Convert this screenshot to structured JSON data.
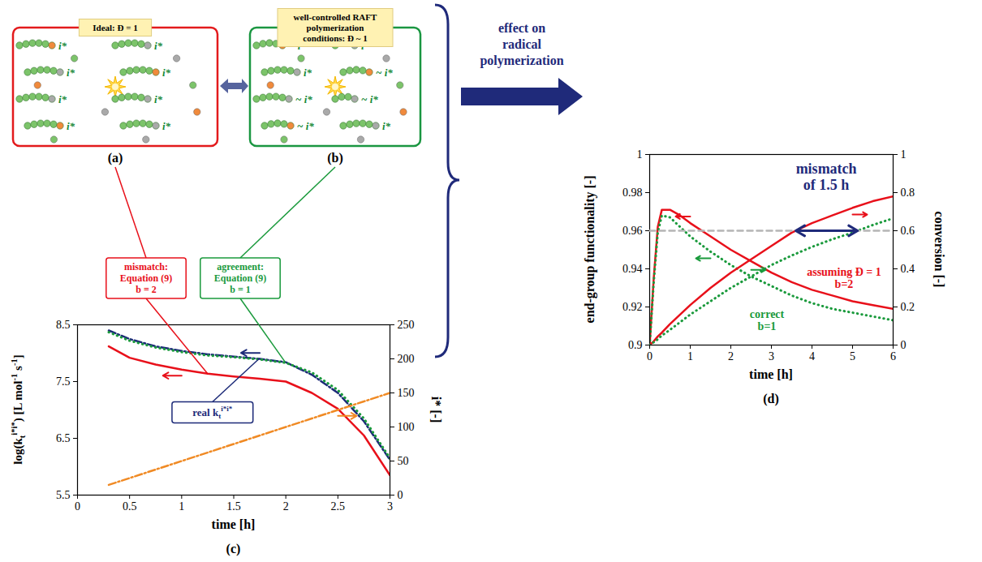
{
  "panels": [
    {
      "panel_label": "(a)",
      "tag": "Ideal: Đ = 1",
      "chain_labels": [
        "i*",
        "i*",
        "i*",
        "i*",
        "i*",
        "i*",
        "i*",
        "i*"
      ]
    },
    {
      "panel_label": "(b)",
      "tag": "well-controlled RAFT polymerization conditions: Đ ~ 1",
      "chain_labels": [
        "~ i*",
        "i*",
        "i*",
        "~ i*",
        "~ i*",
        "~ i*",
        "~ i*",
        "i*"
      ]
    }
  ],
  "arrow_text": "effect on radical polymerization",
  "chart_data": [
    {
      "type": "line",
      "panel_label": "(c)",
      "xlabel": "time [h]",
      "ylabel": [
        {
          "text": "log(k"
        },
        {
          "text": "t",
          "sub": true
        },
        {
          "text": "i*i*",
          "sup": true
        },
        {
          "text": ") [L mol"
        },
        {
          "text": "-1",
          "sup": true
        },
        {
          "text": " s"
        },
        {
          "text": "-1",
          "sup": true
        },
        {
          "text": "]"
        }
      ],
      "y2label": "i* [-]",
      "x": [
        0.3,
        0.5,
        0.75,
        1,
        1.25,
        1.5,
        1.75,
        2,
        2.25,
        2.5,
        2.75,
        3
      ],
      "xlim": [
        0,
        3
      ],
      "xticks": [
        0,
        0.5,
        1,
        1.5,
        2,
        2.5,
        3
      ],
      "ylim": [
        5.5,
        8.5
      ],
      "yticks": [
        5.5,
        6.5,
        7.5,
        8.5
      ],
      "y2lim": [
        0,
        250
      ],
      "y2ticks": [
        0,
        50,
        100,
        150,
        200,
        250
      ],
      "series": [
        {
          "color": "#e8101a",
          "line_style": "solid",
          "values": [
            8.12,
            7.92,
            7.8,
            7.71,
            7.64,
            7.59,
            7.55,
            7.5,
            7.3,
            7.02,
            6.55,
            5.85
          ]
        },
        {
          "color": "#1c2a78",
          "line_style": "dashdot",
          "values": [
            8.4,
            8.25,
            8.12,
            8.04,
            7.98,
            7.94,
            7.9,
            7.84,
            7.62,
            7.3,
            6.8,
            6.12
          ]
        },
        {
          "color": "#1a9a3c",
          "line_style": "dotted",
          "values": [
            8.37,
            8.22,
            8.1,
            8.02,
            7.96,
            7.93,
            7.89,
            7.83,
            7.66,
            7.35,
            6.85,
            6.15
          ]
        },
        {
          "color": "#f08a24",
          "line_style": "dashdot",
          "axis": "y2",
          "values": [
            15,
            25,
            37.5,
            50,
            62.5,
            75,
            87.5,
            100,
            112.5,
            125,
            137.5,
            150
          ]
        }
      ],
      "annotations": [
        {
          "lines": [
            "mismatch:",
            "Equation (9)",
            "b = 2"
          ],
          "series": 0
        },
        {
          "lines": [
            "agreement:",
            "Equation (9)",
            "b = 1"
          ],
          "series": 2
        },
        {
          "runs": [
            {
              "text": "real k"
            },
            {
              "text": "t",
              "sub": true
            },
            {
              "text": "i*i*",
              "sup": true
            }
          ],
          "series": 1
        }
      ]
    },
    {
      "type": "line",
      "panel_label": "(d)",
      "xlabel": "time [h]",
      "ylabel": "end-group functionality [-]",
      "y2label": "conversion [-]",
      "x": [
        0,
        0.1,
        0.2,
        0.3,
        0.5,
        0.75,
        1,
        1.5,
        2,
        2.5,
        3,
        3.5,
        4,
        4.5,
        5,
        5.5,
        6
      ],
      "xlim": [
        0,
        6
      ],
      "xticks": [
        0,
        1,
        2,
        3,
        4,
        5,
        6
      ],
      "ylim": [
        0.9,
        1
      ],
      "yticks": [
        0.9,
        0.92,
        0.94,
        0.96,
        0.98,
        1
      ],
      "y2lim": [
        0,
        1
      ],
      "y2ticks": [
        0,
        0.2,
        0.4,
        0.6,
        0.8,
        1
      ],
      "series": [
        {
          "color": "#e8101a",
          "line_style": "solid",
          "values": [
            0.9,
            0.935,
            0.962,
            0.971,
            0.971,
            0.968,
            0.964,
            0.957,
            0.95,
            0.944,
            0.938,
            0.933,
            0.929,
            0.926,
            0.923,
            0.921,
            0.919
          ]
        },
        {
          "color": "#1a9a3c",
          "line_style": "dotted",
          "values": [
            0.9,
            0.933,
            0.959,
            0.968,
            0.967,
            0.962,
            0.957,
            0.949,
            0.942,
            0.936,
            0.931,
            0.926,
            0.922,
            0.919,
            0.917,
            0.915,
            0.913
          ]
        },
        {
          "color": "#e8101a",
          "line_style": "solid",
          "axis": "y2",
          "values": [
            0,
            0.02,
            0.045,
            0.065,
            0.11,
            0.16,
            0.21,
            0.3,
            0.38,
            0.45,
            0.52,
            0.59,
            0.64,
            0.68,
            0.72,
            0.755,
            0.78
          ]
        },
        {
          "color": "#1a9a3c",
          "line_style": "dotted",
          "axis": "y2",
          "values": [
            0,
            0.015,
            0.03,
            0.05,
            0.08,
            0.12,
            0.16,
            0.23,
            0.3,
            0.36,
            0.42,
            0.47,
            0.515,
            0.555,
            0.59,
            0.63,
            0.665
          ]
        },
        {
          "color": "#b5b5b5",
          "line_style": "dashed",
          "axis": "y2",
          "x": [
            0,
            6
          ],
          "values": [
            0.6,
            0.6
          ]
        }
      ],
      "annotations": [
        {
          "lines": [
            "assuming Đ = 1",
            "b=2"
          ],
          "series": 0
        },
        {
          "lines": [
            "correct",
            "b=1"
          ],
          "series": 1
        },
        {
          "lines": [
            "mismatch",
            "of 1.5 h"
          ],
          "color": "#1f2a7a"
        }
      ]
    }
  ]
}
